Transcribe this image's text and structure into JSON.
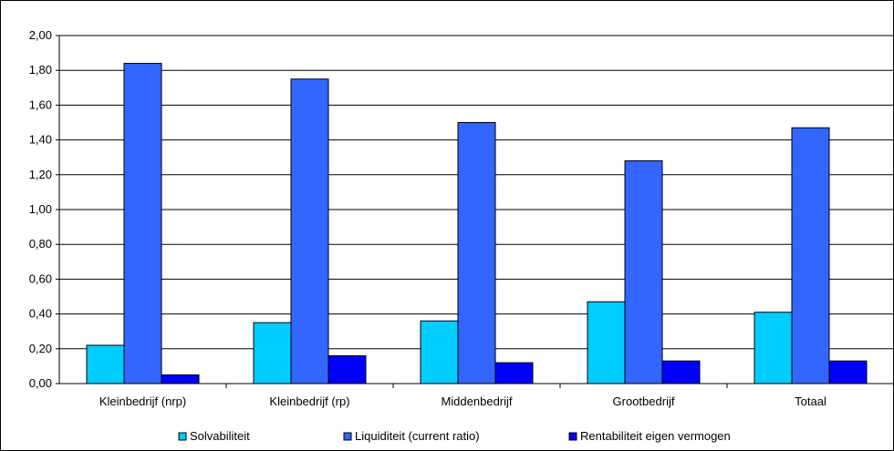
{
  "chart_data": {
    "type": "bar",
    "categories": [
      "Kleinbedrijf (nrp)",
      "Kleinbedrijf (rp)",
      "Middenbedrijf",
      "Grootbedrijf",
      "Totaal"
    ],
    "series": [
      {
        "name": "Solvabiliteit",
        "values": [
          0.22,
          0.35,
          0.36,
          0.47,
          0.41
        ],
        "color": "#00ccff"
      },
      {
        "name": "Liquiditeit (current ratio)",
        "values": [
          1.84,
          1.75,
          1.5,
          1.28,
          1.47
        ],
        "color": "#3366ff"
      },
      {
        "name": "Rentabiliteit eigen vermogen",
        "values": [
          0.05,
          0.16,
          0.12,
          0.13,
          0.13
        ],
        "color": "#0000ff"
      }
    ],
    "yticks": [
      "0,00",
      "0,20",
      "0,40",
      "0,60",
      "0,80",
      "1,00",
      "1,20",
      "1,40",
      "1,60",
      "1,80",
      "2,00"
    ],
    "ylim": [
      0,
      2
    ],
    "grid": true,
    "legend_position": "bottom"
  }
}
